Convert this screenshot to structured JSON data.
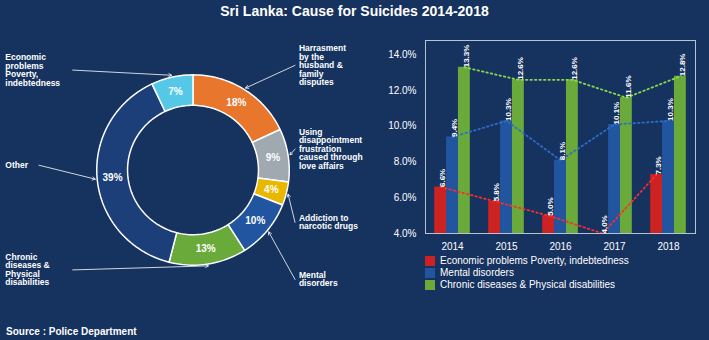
{
  "chart_data": [
    {
      "type": "donut",
      "title": "Sri Lanka:  Cause for Suicides 2014-2018",
      "categories": [
        "Harrasment\nby the\nhusband &\nfamily\ndisputes",
        "Using\ndisappointment\nfrustration\ncaused through\nlove affairs",
        "Addiction to\nnarcotic drugs",
        "Mental\ndisorders",
        "Chronic\ndiseases &\nPhysical\ndisabilities",
        "Other",
        "Economic\nproblems\nPoverty,\nindebtedness"
      ],
      "values": [
        18,
        9,
        4,
        10,
        13,
        39,
        7
      ],
      "value_labels": [
        "18%",
        "9%",
        "4%",
        "10%",
        "13%",
        "39%",
        "7%"
      ],
      "colors": [
        "#e8762c",
        "#a0a8b0",
        "#e8b800",
        "#2255a0",
        "#6aaa3a",
        "#1c3f7a",
        "#55c8e8"
      ],
      "data_labels": true,
      "annotations": [
        "Source : Police Department"
      ]
    },
    {
      "type": "bar",
      "categories": [
        "2014",
        "2015",
        "2016",
        "2017",
        "2018"
      ],
      "series": [
        {
          "name": "Economic problems Poverty, indebtedness",
          "color": "#cc2222",
          "line_style": "dotted",
          "values": [
            6.6,
            5.8,
            5.0,
            4.0,
            7.3
          ],
          "value_labels": [
            "6.6%",
            "5.8%",
            "5.0%",
            "4.0%",
            "7.3%"
          ]
        },
        {
          "name": "Mental disorders",
          "color": "#2255a0",
          "line_style": "dotted",
          "values": [
            9.4,
            10.3,
            8.1,
            10.1,
            10.3
          ],
          "value_labels": [
            "9.4%",
            "10.3%",
            "8.1%",
            "10.1%",
            "10.3%"
          ]
        },
        {
          "name": "Chronic diseases & Physical disabilities",
          "color": "#6aaa3a",
          "line_style": "dotted",
          "values": [
            13.3,
            12.6,
            12.6,
            11.6,
            12.8
          ],
          "value_labels": [
            "13.3%",
            "12.6%",
            "12.6%",
            "11.6%",
            "12.8%"
          ]
        }
      ],
      "ylim": [
        4.0,
        14.8
      ],
      "yticks": [
        {
          "value": 4,
          "label": "4.0%"
        },
        {
          "value": 6,
          "label": "6.0%"
        },
        {
          "value": 8,
          "label": "8.0%"
        },
        {
          "value": 10,
          "label": "10.0%"
        },
        {
          "value": 12,
          "label": "12.0%"
        },
        {
          "value": 14,
          "label": "14.0%"
        }
      ],
      "data_labels": true,
      "grid": false,
      "legend": "bottom"
    }
  ]
}
